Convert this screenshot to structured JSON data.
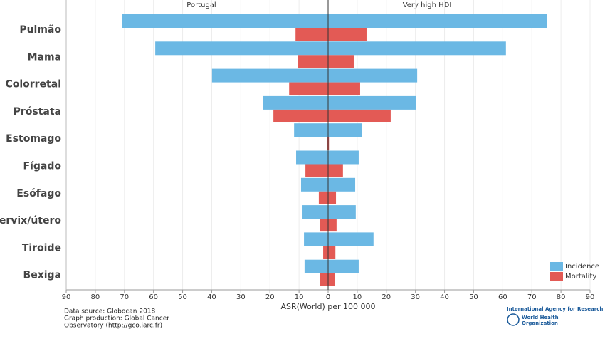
{
  "chart_data": {
    "type": "butterfly-bar",
    "groups": [
      "Portugal",
      "Very high HDI"
    ],
    "categories": [
      "Pulmão",
      "Mama",
      "Colorretal",
      "Próstata",
      "Estomago",
      "Fígado",
      "Esófago",
      "Cervix/útero",
      "Tiroide",
      "Bexiga"
    ],
    "series": [
      {
        "name": "Incidence",
        "color": "#6bb8e4",
        "values": [
          [
            70.7,
            59.4,
            39.9,
            22.5,
            11.7,
            11.0,
            9.3,
            8.8,
            8.3,
            8.1
          ],
          [
            75.3,
            61.1,
            30.6,
            30.1,
            11.7,
            10.5,
            9.3,
            9.5,
            15.6,
            10.5
          ]
        ]
      },
      {
        "name": "Mortality",
        "color": "#e35a55",
        "values": [
          [
            11.2,
            10.5,
            13.4,
            18.8,
            0.3,
            7.8,
            3.2,
            2.7,
            1.7,
            2.9
          ],
          [
            13.2,
            8.8,
            11.0,
            21.5,
            0.3,
            5.1,
            2.7,
            2.9,
            2.5,
            2.4
          ]
        ]
      }
    ],
    "xlim": [
      0,
      90
    ],
    "xticks": [
      0,
      10,
      20,
      30,
      40,
      50,
      60,
      70,
      80,
      90
    ],
    "x_label": "ASR(World) per 100 000",
    "grid": true,
    "legend": "bottom-right",
    "footer": [
      "Data source: Globocan 2018",
      "Graph production: Global Cancer",
      "Observatory (http://gco.iarc.fr)"
    ],
    "logos": [
      "International Agency for Research on Cancer",
      "World Health",
      "Organization"
    ]
  }
}
